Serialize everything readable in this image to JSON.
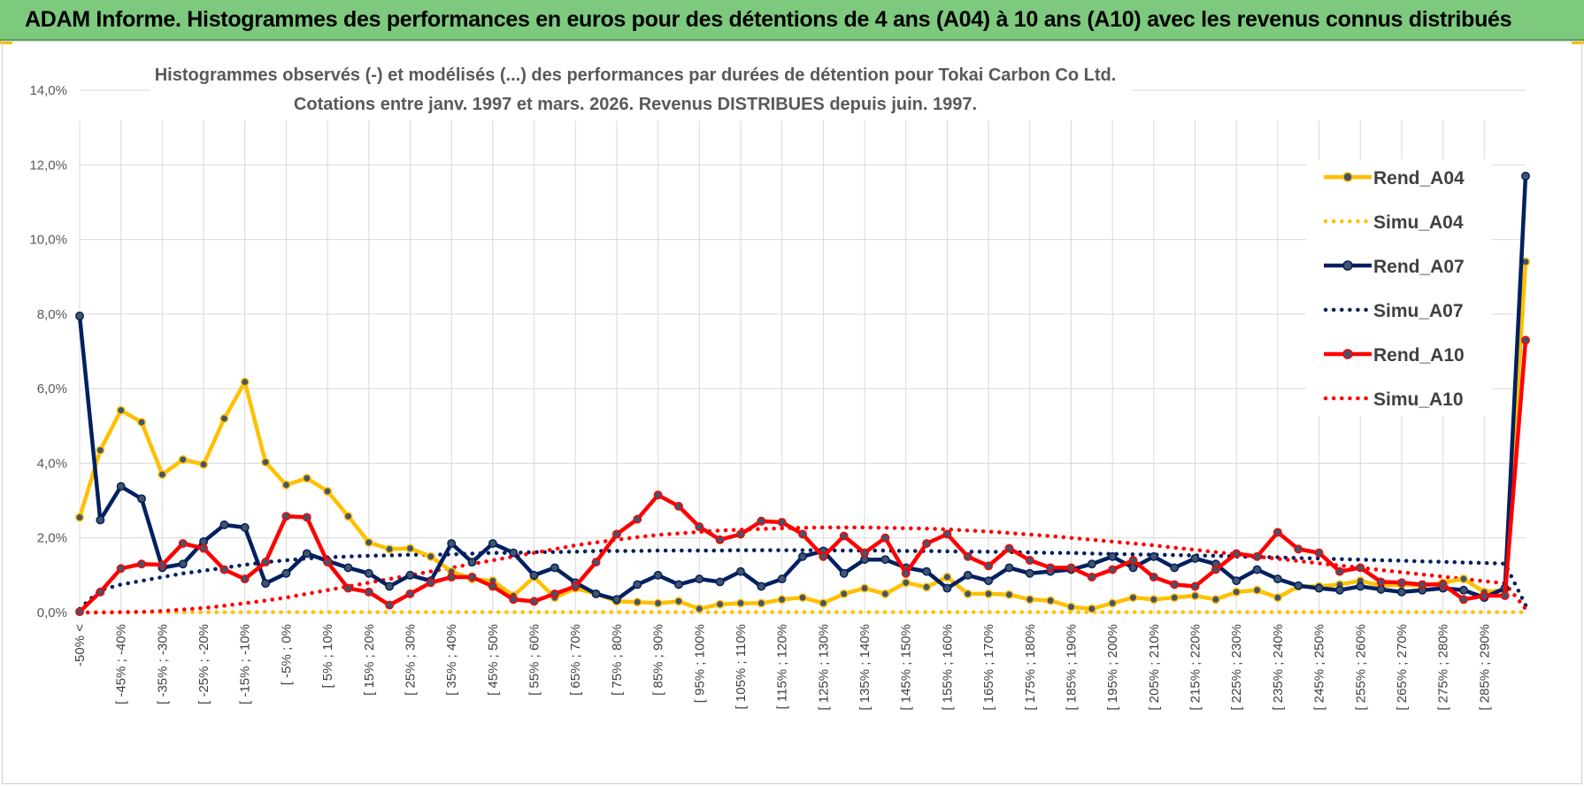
{
  "header": {
    "title": "ADAM Informe. Histogrammes des performances en euros pour des détentions de 4 ans (A04) à 10 ans (A10) avec les revenus connus distribués"
  },
  "chart_data": {
    "type": "line",
    "title": "Histogrammes observés (-) et modélisés (...) des performances par durées de détention pour Tokai Carbon Co Ltd.",
    "subtitle": "Cotations entre janv. 1997 et mars. 2026.  Revenus DISTRIBUES depuis juin. 1997.",
    "ylim": [
      0,
      14
    ],
    "y_ticks": [
      "0,0%",
      "2,0%",
      "4,0%",
      "6,0%",
      "8,0%",
      "10,0%",
      "12,0%",
      "14,0%"
    ],
    "x_tick_labels": [
      "-50% <",
      "[ -45% ; -40%",
      "[ -35% ; -30%",
      "[ -25% ; -20%",
      "[ -15% ; -10%",
      "[ -5% ; 0%",
      "[ 5% ; 10%",
      "[ 15% ; 20%",
      "[ 25% ; 30%",
      "[ 35% ; 40%",
      "[ 45% ; 50%",
      "[ 55% ; 60%",
      "[ 65% ; 70%",
      "[ 75% ; 80%",
      "[ 85% ; 90%",
      "[ 95% ; 100%",
      "[ 105% ; 110%",
      "[ 115% ; 120%",
      "[ 125% ; 130%",
      "[ 135% ; 140%",
      "[ 145% ; 150%",
      "[ 155% ; 160%",
      "[ 165% ; 170%",
      "[ 175% ; 180%",
      "[ 185% ; 190%",
      "[ 195% ; 200%",
      "[ 205% ; 210%",
      "[ 215% ; 220%",
      "[ 225% ; 230%",
      "[ 235% ; 240%",
      "[ 245% ; 250%",
      "[ 255% ; 260%",
      "[ 265% ; 270%",
      "[ 275% ; 280%",
      "[ 285% ; 290%"
    ],
    "n_categories": 71,
    "series": [
      {
        "name": "Rend_A04",
        "style": "solid",
        "color": "#FFC000",
        "values": [
          2.55,
          4.35,
          5.42,
          5.1,
          3.7,
          4.1,
          3.97,
          5.2,
          6.18,
          4.03,
          3.42,
          3.6,
          3.25,
          2.58,
          1.88,
          1.7,
          1.72,
          1.5,
          1.1,
          0.9,
          0.85,
          0.45,
          0.95,
          0.4,
          0.65,
          0.5,
          0.3,
          0.28,
          0.25,
          0.3,
          0.1,
          0.22,
          0.25,
          0.25,
          0.35,
          0.4,
          0.25,
          0.5,
          0.65,
          0.5,
          0.8,
          0.68,
          0.95,
          0.5,
          0.5,
          0.48,
          0.35,
          0.32,
          0.15,
          0.1,
          0.25,
          0.4,
          0.35,
          0.4,
          0.45,
          0.35,
          0.55,
          0.6,
          0.4,
          0.7,
          0.7,
          0.75,
          0.85,
          0.72,
          0.75,
          0.72,
          0.8,
          0.9,
          0.55,
          0.6,
          9.4
        ]
      },
      {
        "name": "Simu_A04",
        "style": "dotted",
        "color": "#FFC000",
        "values": [
          0.01,
          0.01,
          0.01,
          0.01,
          0.01,
          0.01,
          0.01,
          0.01,
          0.01,
          0.01,
          0.01,
          0.01,
          0.01,
          0.01,
          0.01,
          0.01,
          0.01,
          0.01,
          0.01,
          0.01,
          0.01,
          0.01,
          0.01,
          0.01,
          0.01,
          0.01,
          0.01,
          0.01,
          0.01,
          0.01,
          0.01,
          0.01,
          0.01,
          0.01,
          0.01,
          0.01,
          0.01,
          0.01,
          0.01,
          0.01,
          0.01,
          0.01,
          0.01,
          0.01,
          0.01,
          0.01,
          0.01,
          0.01,
          0.01,
          0.01,
          0.01,
          0.01,
          0.01,
          0.01,
          0.01,
          0.01,
          0.01,
          0.01,
          0.01,
          0.01,
          0.01,
          0.01,
          0.01,
          0.01,
          0.01,
          0.01,
          0.01,
          0.01,
          0.01,
          0.01,
          0.01
        ]
      },
      {
        "name": "Rend_A07",
        "style": "solid",
        "color": "#002060",
        "values": [
          7.95,
          2.48,
          3.38,
          3.05,
          1.2,
          1.3,
          1.9,
          2.35,
          2.28,
          0.78,
          1.05,
          1.58,
          1.38,
          1.2,
          1.05,
          0.7,
          1.0,
          0.85,
          1.85,
          1.35,
          1.85,
          1.6,
          1.0,
          1.2,
          0.8,
          0.5,
          0.35,
          0.75,
          1.0,
          0.75,
          0.9,
          0.82,
          1.1,
          0.7,
          0.9,
          1.5,
          1.65,
          1.05,
          1.42,
          1.42,
          1.2,
          1.1,
          0.65,
          1.0,
          0.85,
          1.2,
          1.05,
          1.1,
          1.15,
          1.3,
          1.5,
          1.2,
          1.5,
          1.2,
          1.45,
          1.3,
          0.85,
          1.15,
          0.9,
          0.72,
          0.65,
          0.6,
          0.7,
          0.62,
          0.55,
          0.6,
          0.65,
          0.6,
          0.4,
          0.65,
          11.7
        ]
      },
      {
        "name": "Simu_A07",
        "style": "dotted",
        "color": "#002060",
        "values": [
          0.1,
          0.6,
          0.75,
          0.85,
          0.95,
          1.05,
          1.12,
          1.2,
          1.28,
          1.35,
          1.4,
          1.45,
          1.48,
          1.5,
          1.52,
          1.53,
          1.55,
          1.55,
          1.56,
          1.58,
          1.6,
          1.6,
          1.62,
          1.62,
          1.63,
          1.65,
          1.65,
          1.65,
          1.66,
          1.66,
          1.66,
          1.66,
          1.67,
          1.67,
          1.67,
          1.67,
          1.67,
          1.66,
          1.66,
          1.66,
          1.65,
          1.65,
          1.64,
          1.63,
          1.63,
          1.62,
          1.61,
          1.6,
          1.6,
          1.58,
          1.57,
          1.56,
          1.55,
          1.54,
          1.53,
          1.52,
          1.5,
          1.49,
          1.48,
          1.46,
          1.45,
          1.43,
          1.42,
          1.4,
          1.39,
          1.37,
          1.36,
          1.34,
          1.33,
          1.31,
          0.2
        ]
      },
      {
        "name": "Rend_A10",
        "style": "solid",
        "color": "#FF0000",
        "values": [
          0.02,
          0.55,
          1.18,
          1.3,
          1.28,
          1.85,
          1.72,
          1.15,
          0.9,
          1.35,
          2.58,
          2.55,
          1.35,
          0.65,
          0.55,
          0.2,
          0.5,
          0.8,
          0.95,
          0.95,
          0.7,
          0.35,
          0.3,
          0.5,
          0.7,
          1.35,
          2.1,
          2.5,
          3.15,
          2.85,
          2.3,
          1.95,
          2.1,
          2.45,
          2.42,
          2.1,
          1.5,
          2.05,
          1.6,
          2.0,
          1.05,
          1.85,
          2.1,
          1.5,
          1.25,
          1.72,
          1.4,
          1.2,
          1.2,
          0.95,
          1.15,
          1.4,
          0.95,
          0.75,
          0.7,
          1.15,
          1.58,
          1.5,
          2.15,
          1.7,
          1.6,
          1.1,
          1.2,
          0.82,
          0.8,
          0.75,
          0.75,
          0.35,
          0.45,
          0.45,
          7.3
        ]
      },
      {
        "name": "Simu_A10",
        "style": "dotted",
        "color": "#FF0000",
        "values": [
          0.0,
          0.0,
          0.01,
          0.02,
          0.04,
          0.08,
          0.12,
          0.18,
          0.25,
          0.32,
          0.4,
          0.5,
          0.6,
          0.7,
          0.8,
          0.9,
          1.0,
          1.1,
          1.2,
          1.3,
          1.4,
          1.5,
          1.6,
          1.7,
          1.8,
          1.88,
          1.95,
          2.02,
          2.08,
          2.12,
          2.16,
          2.2,
          2.22,
          2.24,
          2.26,
          2.27,
          2.28,
          2.28,
          2.28,
          2.27,
          2.26,
          2.25,
          2.23,
          2.2,
          2.17,
          2.13,
          2.09,
          2.05,
          2.0,
          1.95,
          1.9,
          1.85,
          1.8,
          1.74,
          1.68,
          1.62,
          1.56,
          1.5,
          1.44,
          1.38,
          1.32,
          1.26,
          1.2,
          1.14,
          1.08,
          1.02,
          0.96,
          0.9,
          0.84,
          0.78,
          0.1
        ]
      }
    ],
    "legend_position": "right",
    "grid": true
  }
}
